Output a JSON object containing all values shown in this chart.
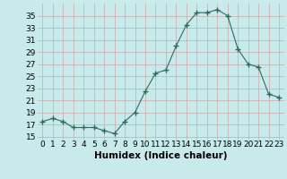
{
  "x": [
    0,
    1,
    2,
    3,
    4,
    5,
    6,
    7,
    8,
    9,
    10,
    11,
    12,
    13,
    14,
    15,
    16,
    17,
    18,
    19,
    20,
    21,
    22,
    23
  ],
  "y": [
    17.5,
    18,
    17.5,
    16.5,
    16.5,
    16.5,
    16,
    15.5,
    17.5,
    19,
    22.5,
    25.5,
    26,
    30,
    33.5,
    35.5,
    35.5,
    36,
    35,
    29.5,
    27,
    26.5,
    22,
    21.5
  ],
  "line_color": "#2e6b5e",
  "marker": "+",
  "marker_size": 4,
  "bg_color": "#c9eaea",
  "grid_color": "#c8a8a8",
  "xlabel": "Humidex (Indice chaleur)",
  "xlim": [
    -0.5,
    23.5
  ],
  "ylim": [
    14.5,
    37.0
  ],
  "yticks": [
    15,
    17,
    19,
    21,
    23,
    25,
    27,
    29,
    31,
    33,
    35
  ],
  "xtick_labels": [
    "0",
    "1",
    "2",
    "3",
    "4",
    "5",
    "6",
    "7",
    "8",
    "9",
    "10",
    "11",
    "12",
    "13",
    "14",
    "15",
    "16",
    "17",
    "18",
    "19",
    "20",
    "21",
    "22",
    "23"
  ],
  "tick_font_size": 6.5,
  "xlabel_font_size": 7.5
}
